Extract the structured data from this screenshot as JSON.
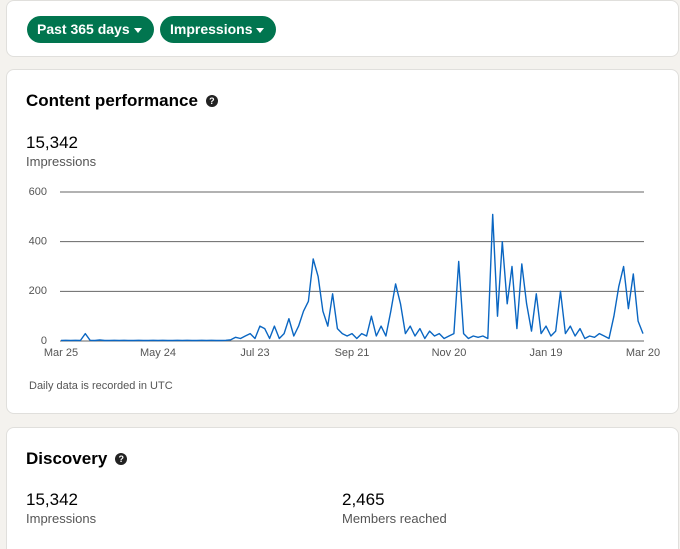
{
  "filters": [
    "Past 365 days",
    "Impressions"
  ],
  "content_performance": {
    "title": "Content performance",
    "value": "15,342",
    "label": "Impressions",
    "note": "Daily data is recorded in UTC"
  },
  "chart_data": {
    "type": "line",
    "categories": [
      "Mar 25",
      null,
      null,
      null,
      null,
      null,
      null,
      null,
      null,
      null,
      null,
      null,
      null,
      null,
      null,
      null,
      null,
      null,
      null,
      null,
      "May 24",
      null,
      null,
      null,
      null,
      null,
      null,
      null,
      null,
      null,
      null,
      null,
      null,
      null,
      null,
      null,
      null,
      null,
      null,
      null,
      "Jul 23",
      null,
      null,
      null,
      null,
      null,
      null,
      null,
      null,
      null,
      null,
      null,
      null,
      null,
      null,
      null,
      null,
      null,
      null,
      null,
      "Sep 21",
      null,
      null,
      null,
      null,
      null,
      null,
      null,
      null,
      null,
      null,
      null,
      null,
      null,
      null,
      null,
      null,
      null,
      null,
      null,
      "Nov 20",
      null,
      null,
      null,
      null,
      null,
      null,
      null,
      null,
      null,
      null,
      null,
      null,
      null,
      null,
      null,
      null,
      null,
      null,
      null,
      "Jan 19",
      null,
      null,
      null,
      null,
      null,
      null,
      null,
      null,
      null,
      null,
      null,
      null,
      null,
      null,
      null,
      null,
      null,
      null,
      null,
      "Mar 20"
    ],
    "values": [
      2,
      3,
      2,
      3,
      2,
      30,
      3,
      2,
      4,
      2,
      2,
      3,
      2,
      3,
      2,
      2,
      3,
      2,
      2,
      3,
      2,
      3,
      2,
      2,
      3,
      2,
      3,
      2,
      2,
      3,
      2,
      3,
      2,
      2,
      3,
      5,
      15,
      10,
      20,
      30,
      10,
      60,
      50,
      10,
      60,
      10,
      30,
      90,
      20,
      60,
      120,
      160,
      330,
      260,
      120,
      60,
      190,
      50,
      30,
      20,
      30,
      10,
      30,
      20,
      100,
      20,
      60,
      20,
      120,
      230,
      150,
      30,
      60,
      20,
      50,
      10,
      40,
      20,
      30,
      10,
      20,
      30,
      320,
      30,
      10,
      20,
      15,
      20,
      10,
      510,
      100,
      400,
      150,
      300,
      50,
      310,
      150,
      40,
      190,
      30,
      60,
      20,
      40,
      200,
      30,
      60,
      20,
      50,
      10,
      20,
      15,
      30,
      20,
      10,
      100,
      220,
      300,
      130,
      270,
      80,
      30
    ],
    "color": "#0a66c2",
    "ylim": [
      0,
      600
    ],
    "yticks": [
      0,
      200,
      400,
      600
    ],
    "grid": true
  },
  "discovery": {
    "title": "Discovery",
    "metrics": [
      {
        "value": "15,342",
        "label": "Impressions"
      },
      {
        "value": "2,465",
        "label": "Members reached"
      }
    ]
  }
}
